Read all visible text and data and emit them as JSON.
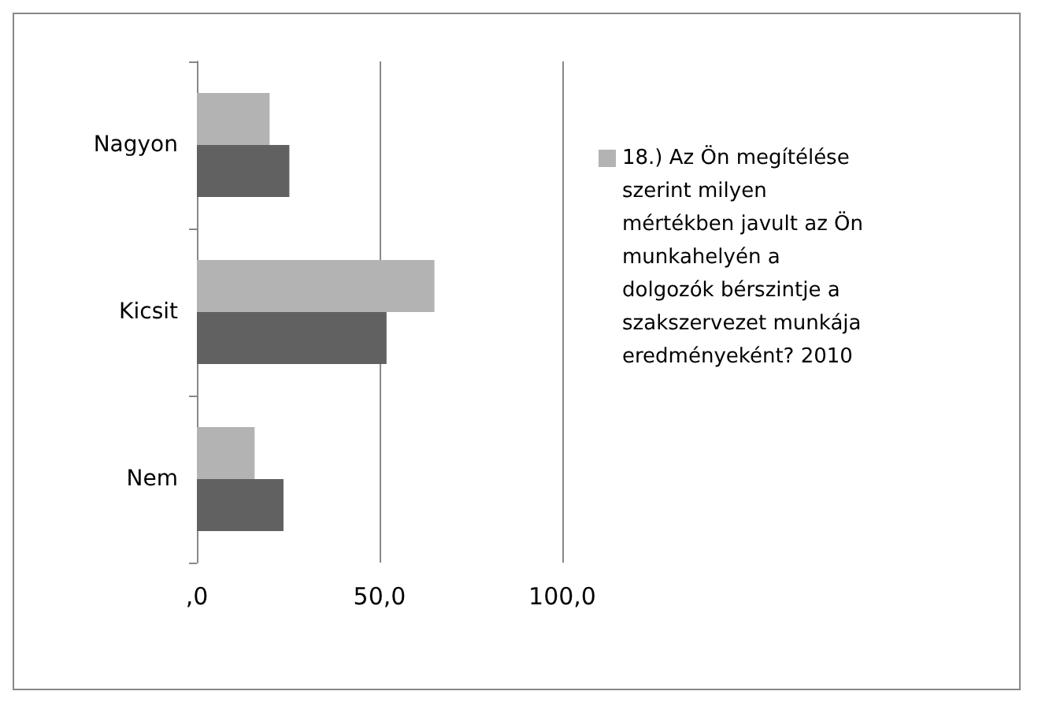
{
  "chart_data": {
    "type": "bar",
    "orientation": "horizontal",
    "categories": [
      "Nagyon",
      "Kicsit",
      "Nem"
    ],
    "series": [
      {
        "name": "18.) Az Ön megítélése szerint milyen mértékben javult az Ön munkahelyén a dolgozók bérszintje a szakszervezet munkája eredményeként? 2010",
        "color": "#b3b3b3",
        "values": [
          19.9,
          65.0,
          15.8
        ]
      },
      {
        "color": "#616161",
        "values": [
          25.3,
          51.9,
          23.7
        ]
      }
    ],
    "xlim": [
      0,
      100
    ],
    "xticks": [
      {
        "value": 0,
        "label": ",0"
      },
      {
        "value": 50,
        "label": "50,0"
      },
      {
        "value": 100,
        "label": "100,0"
      }
    ],
    "grid": "x",
    "legend": "right"
  }
}
